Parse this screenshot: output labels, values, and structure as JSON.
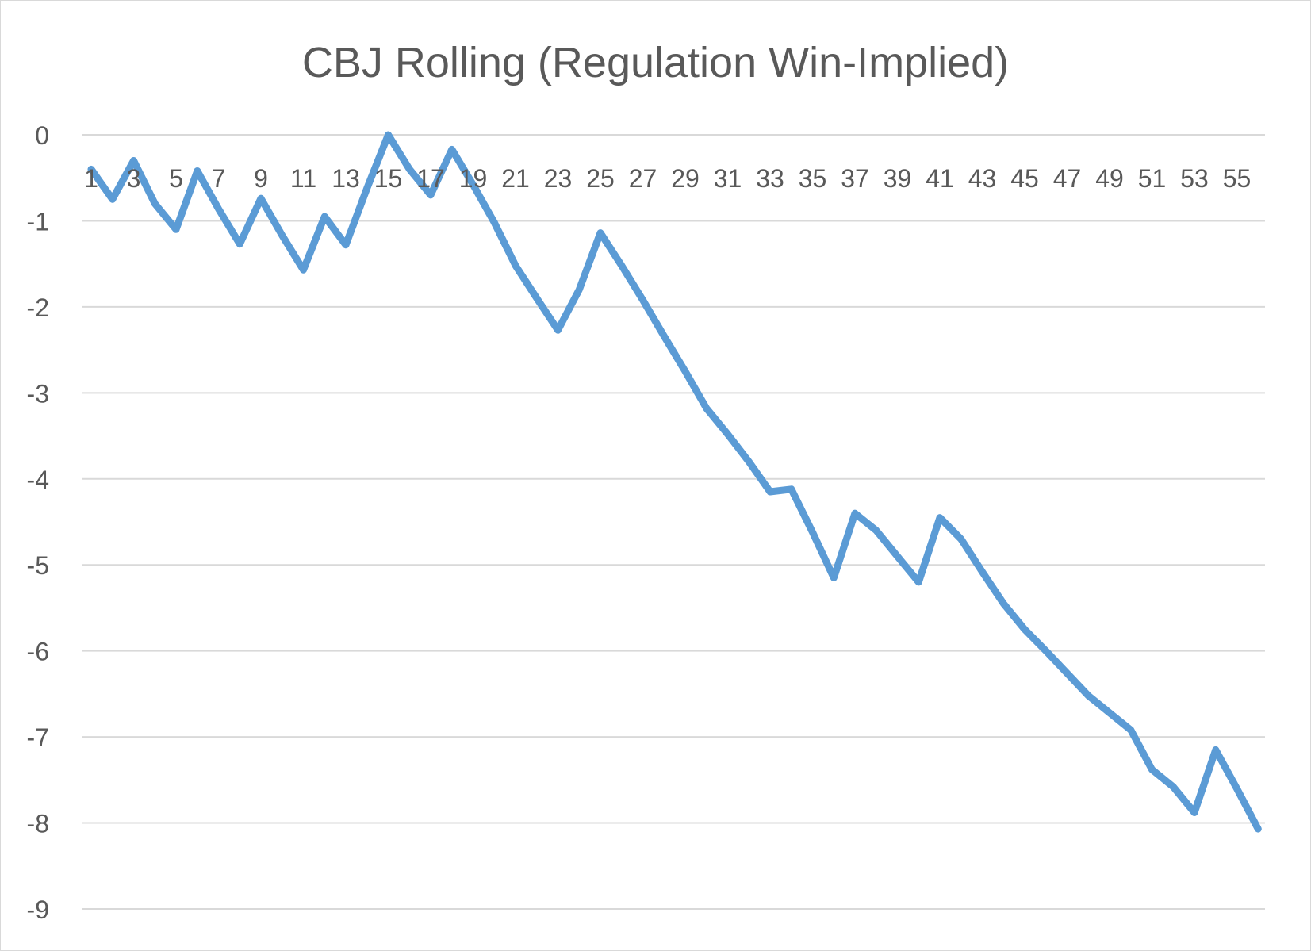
{
  "chart_data": {
    "type": "line",
    "title": "CBJ Rolling (Regulation Win-Implied)",
    "xlabel": "",
    "ylabel": "",
    "ylim": [
      -9,
      0
    ],
    "y_ticks": [
      0,
      -1,
      -2,
      -3,
      -4,
      -5,
      -6,
      -7,
      -8,
      -9
    ],
    "x_tick_labels": [
      "1",
      "3",
      "5",
      "7",
      "9",
      "11",
      "13",
      "15",
      "17",
      "19",
      "21",
      "23",
      "25",
      "27",
      "29",
      "31",
      "33",
      "35",
      "37",
      "39",
      "41",
      "43",
      "45",
      "47",
      "49",
      "51",
      "53",
      "55"
    ],
    "grid": true,
    "legend": "none",
    "line_color": "#5B9BD5",
    "grid_color": "#d9d9d9",
    "x": [
      1,
      2,
      3,
      4,
      5,
      6,
      7,
      8,
      9,
      10,
      11,
      12,
      13,
      14,
      15,
      16,
      17,
      18,
      19,
      20,
      21,
      22,
      23,
      24,
      25,
      26,
      27,
      28,
      29,
      30,
      31,
      32,
      33,
      34,
      35,
      36,
      37,
      38,
      39,
      40,
      41,
      42,
      43,
      44,
      45,
      46,
      47,
      48,
      49,
      50,
      51,
      52,
      53,
      54,
      55,
      56
    ],
    "series": [
      {
        "values": [
          -0.4,
          -0.75,
          -0.3,
          -0.8,
          -1.1,
          -0.42,
          -0.86,
          -1.27,
          -0.74,
          -1.17,
          -1.57,
          -0.95,
          -1.28,
          -0.62,
          0.0,
          -0.4,
          -0.7,
          -0.17,
          -0.58,
          -1.02,
          -1.52,
          -1.9,
          -2.27,
          -1.8,
          -1.14,
          -1.52,
          -1.92,
          -2.34,
          -2.75,
          -3.18,
          -3.48,
          -3.8,
          -4.15,
          -4.12,
          -4.62,
          -5.15,
          -4.4,
          -4.6,
          -4.9,
          -5.2,
          -4.45,
          -4.7,
          -5.08,
          -5.45,
          -5.75,
          -6.0,
          -6.26,
          -6.52,
          -6.72,
          -6.92,
          -7.38,
          -7.58,
          -7.88,
          -7.15,
          -7.6,
          -8.07
        ]
      }
    ]
  }
}
